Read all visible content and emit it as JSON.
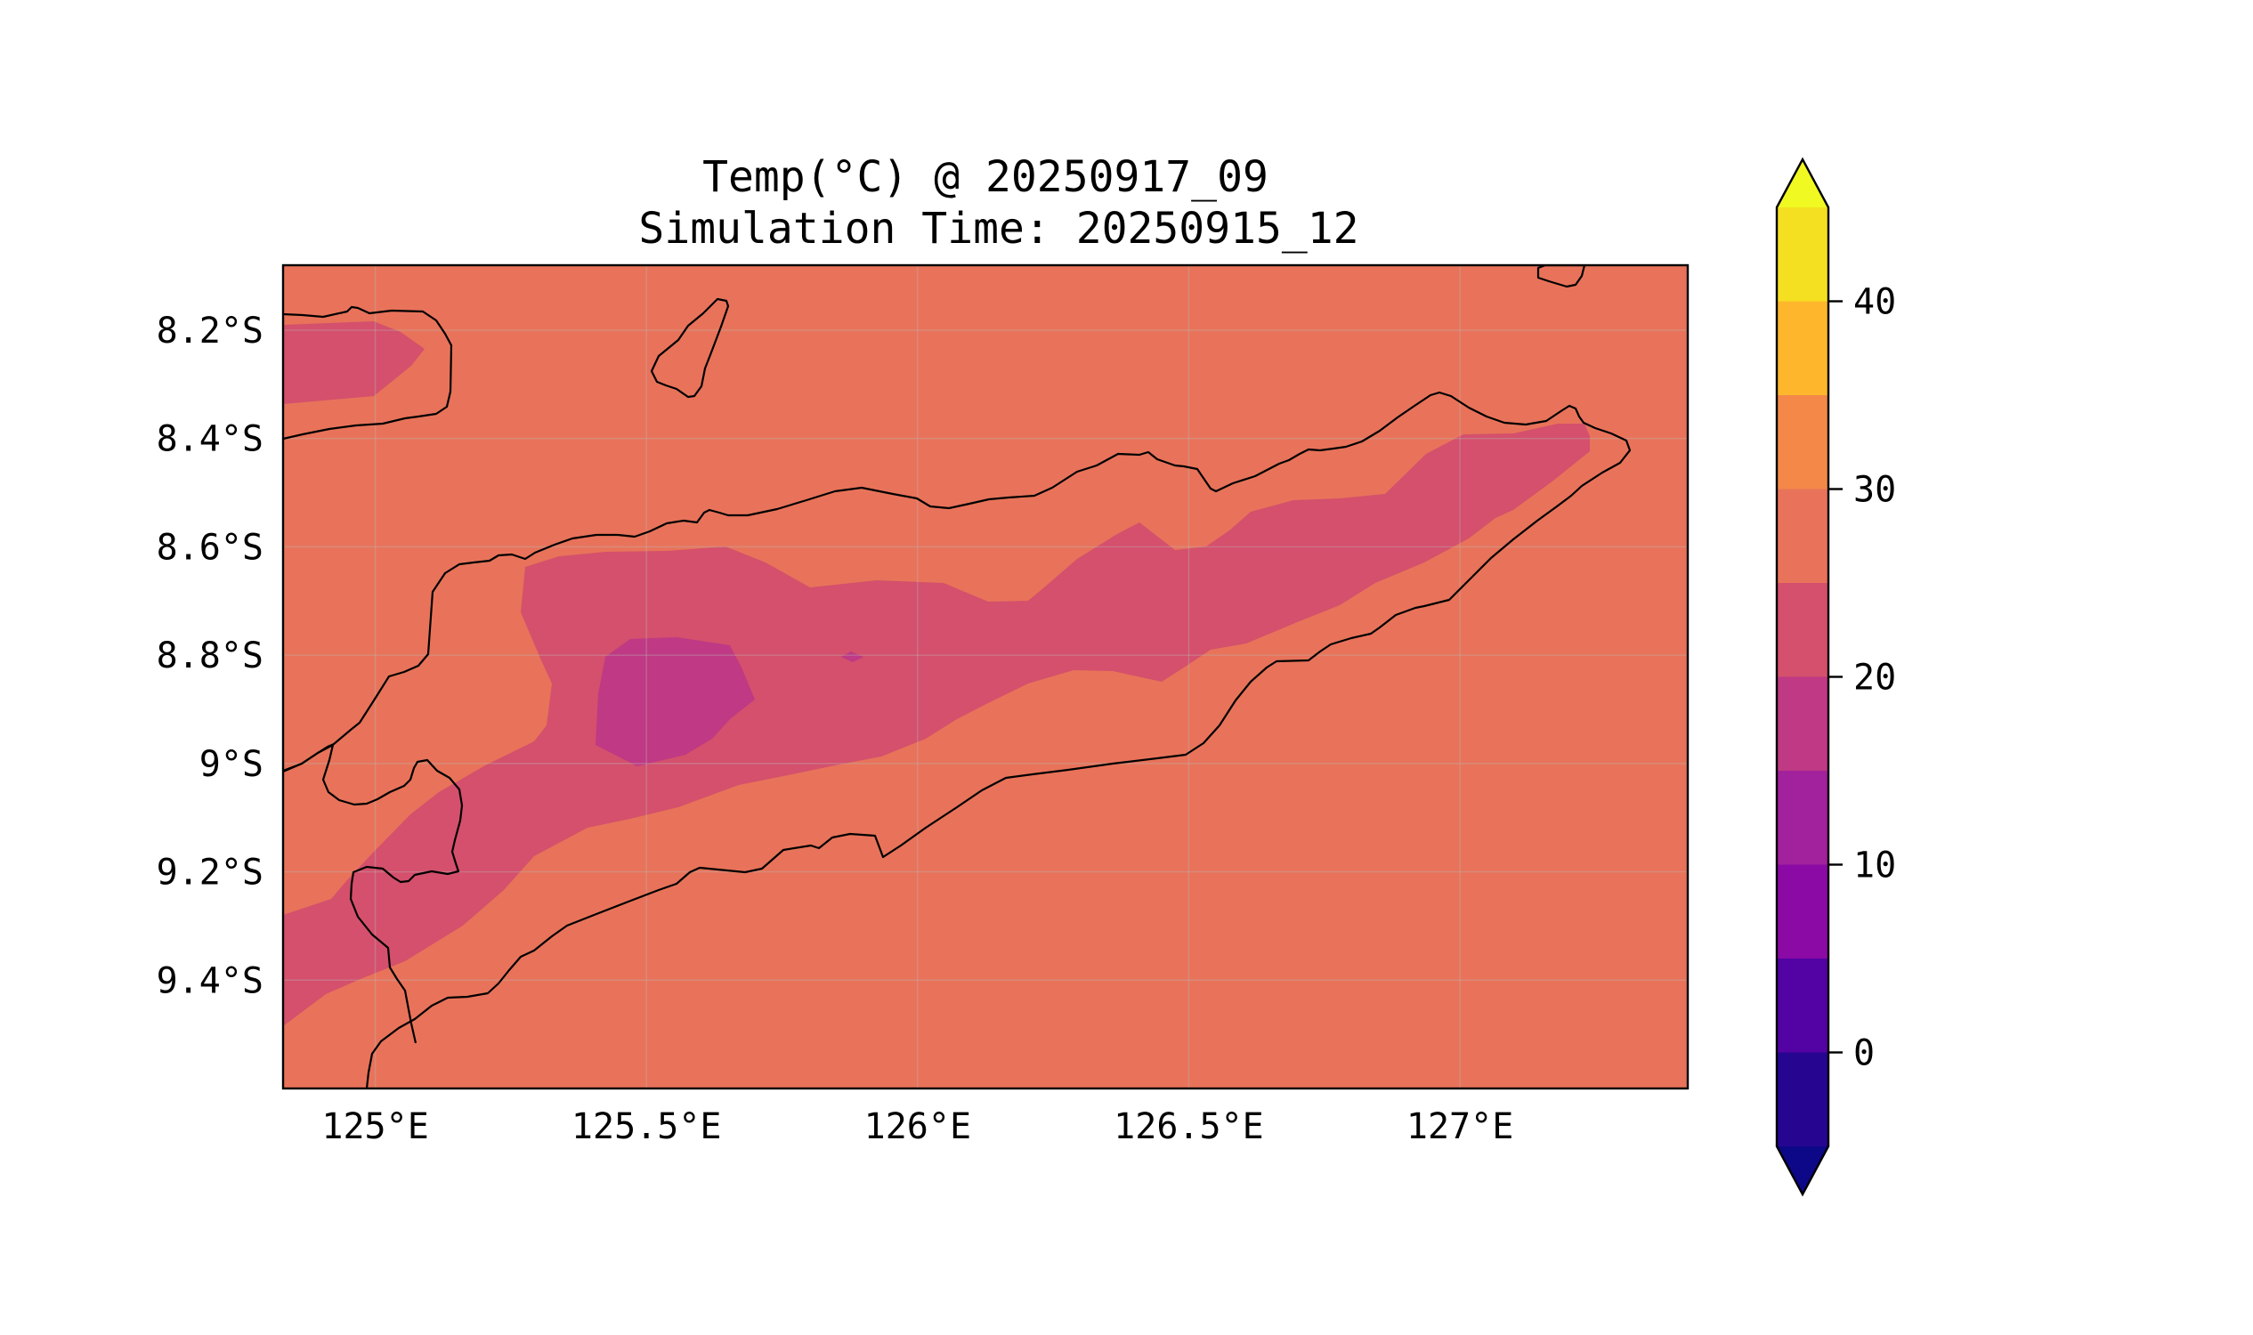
{
  "title": {
    "line1": "Temp(°C) @ 20250917_09",
    "line2": "Simulation Time: 20250915_12"
  },
  "map": {
    "lon_range": [
      124.83,
      127.42
    ],
    "lat_range": [
      -9.6,
      -8.08
    ],
    "lon_ticks": [
      {
        "value": 125.0,
        "label": "125°E"
      },
      {
        "value": 125.5,
        "label": "125.5°E"
      },
      {
        "value": 126.0,
        "label": "126°E"
      },
      {
        "value": 126.5,
        "label": "126.5°E"
      },
      {
        "value": 127.0,
        "label": "127°E"
      }
    ],
    "lat_ticks": [
      {
        "value": -8.2,
        "label": "8.2°S"
      },
      {
        "value": -8.4,
        "label": "8.4°S"
      },
      {
        "value": -8.6,
        "label": "8.6°S"
      },
      {
        "value": -8.8,
        "label": "8.8°S"
      },
      {
        "value": -9.0,
        "label": "9°S"
      },
      {
        "value": -9.2,
        "label": "9.2°S"
      },
      {
        "value": -9.4,
        "label": "9.4°S"
      }
    ],
    "gridlines": true,
    "background_band": {
      "range": [
        25,
        30
      ],
      "color": "#e8735a"
    },
    "filled_regions": [
      {
        "band": [
          20,
          25
        ],
        "color": "#d4506c"
      },
      {
        "band": [
          15,
          20
        ],
        "color": "#bf3984"
      }
    ]
  },
  "colorbar": {
    "ticks": [
      {
        "value": 0,
        "label": "0"
      },
      {
        "value": 10,
        "label": "10"
      },
      {
        "value": 20,
        "label": "20"
      },
      {
        "value": 30,
        "label": "30"
      },
      {
        "value": 40,
        "label": "40"
      }
    ],
    "levels": [
      -5,
      0,
      5,
      10,
      15,
      20,
      25,
      30,
      35,
      40,
      45
    ],
    "colors": [
      "#260591",
      "#5302a3",
      "#8b0aa5",
      "#a2219c",
      "#bf3984",
      "#d4506c",
      "#e8735a",
      "#f48849",
      "#feb72d",
      "#f4e021"
    ],
    "extend_low_color": "#0d0887",
    "extend_high_color": "#f0f921"
  }
}
